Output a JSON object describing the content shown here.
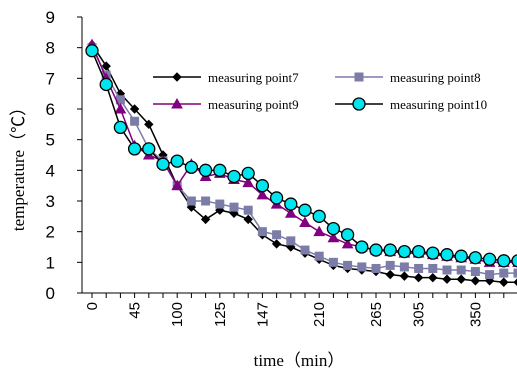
{
  "chart_data": {
    "type": "line",
    "title": "",
    "xlabel": "time（min）",
    "ylabel": "temperature（℃）",
    "ylim": [
      0,
      9
    ],
    "y_ticks": [
      "0",
      "1",
      "2",
      "3",
      "4",
      "5",
      "6",
      "7",
      "8",
      "9"
    ],
    "x_tick_labels": [
      "0",
      "45",
      "100",
      "125",
      "147",
      "210",
      "265",
      "305",
      "350"
    ],
    "grid": false,
    "legend_position": "top-right",
    "x": [
      0,
      15,
      30,
      45,
      60,
      75,
      100,
      110,
      120,
      125,
      135,
      140,
      147,
      160,
      175,
      190,
      210,
      225,
      240,
      255,
      265,
      280,
      290,
      305,
      315,
      330,
      340,
      350,
      360,
      375,
      385
    ],
    "series": [
      {
        "name": "measuring point7",
        "color": "#000000",
        "marker": "diamond",
        "values": [
          8.1,
          7.4,
          6.5,
          6.0,
          5.5,
          4.5,
          3.5,
          2.8,
          2.4,
          2.7,
          2.6,
          2.4,
          1.9,
          1.6,
          1.5,
          1.3,
          1.1,
          0.9,
          0.8,
          0.75,
          0.7,
          0.6,
          0.55,
          0.5,
          0.5,
          0.45,
          0.45,
          0.4,
          0.4,
          0.35,
          0.35
        ]
      },
      {
        "name": "measuring point8",
        "color": "#7C7CA9",
        "marker": "square",
        "values": [
          8.0,
          7.1,
          6.3,
          5.6,
          4.7,
          4.3,
          3.5,
          3.0,
          3.0,
          2.9,
          2.8,
          2.7,
          2.0,
          1.9,
          1.7,
          1.4,
          1.2,
          1.0,
          0.9,
          0.85,
          0.8,
          0.9,
          0.85,
          0.8,
          0.8,
          0.75,
          0.75,
          0.7,
          0.6,
          0.65,
          0.65
        ]
      },
      {
        "name": "measuring point9",
        "color": "#800080",
        "marker": "triangle",
        "values": [
          8.1,
          7.0,
          6.0,
          4.8,
          4.5,
          4.3,
          3.5,
          4.2,
          3.8,
          3.9,
          3.7,
          3.6,
          3.2,
          2.9,
          2.6,
          2.3,
          2.0,
          1.8,
          1.6,
          1.5,
          1.4,
          1.35,
          1.3,
          1.3,
          1.25,
          1.2,
          1.15,
          1.1,
          1.0,
          1.0,
          1.0
        ]
      },
      {
        "name": "measuring point10",
        "color": "#000000",
        "fill": "#00E5EE",
        "marker": "circle",
        "values": [
          7.9,
          6.8,
          5.4,
          4.7,
          4.7,
          4.2,
          4.3,
          4.1,
          4.0,
          4.0,
          3.8,
          3.9,
          3.5,
          3.1,
          2.9,
          2.7,
          2.5,
          2.1,
          1.9,
          1.5,
          1.4,
          1.4,
          1.35,
          1.35,
          1.3,
          1.25,
          1.2,
          1.15,
          1.1,
          1.05,
          1.05
        ]
      }
    ]
  }
}
